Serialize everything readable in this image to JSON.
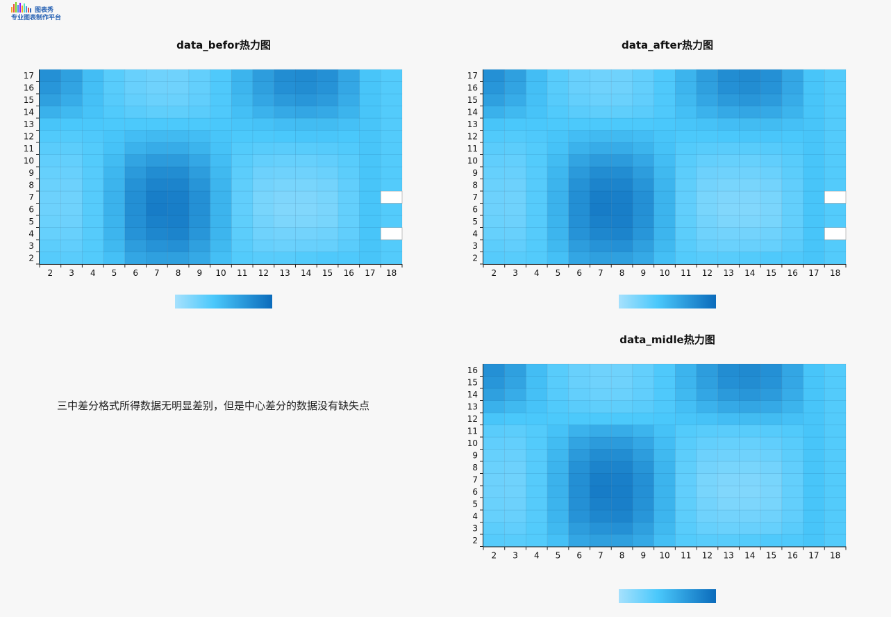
{
  "logo": {
    "line1": "图表秀",
    "line2": "专业图表制作平台"
  },
  "note": "三中差分格式所得数据无明显差别，但是中心差分的数据没有缺失点",
  "palette": [
    "#a6e1fd",
    "#4ac8fb",
    "#0b6bbb"
  ],
  "chart_data": [
    {
      "type": "heatmap",
      "title": "data_befor热力图",
      "x": [
        2,
        3,
        4,
        5,
        6,
        7,
        8,
        9,
        10,
        11,
        12,
        13,
        14,
        15,
        16,
        17,
        18
      ],
      "y": [
        2,
        3,
        4,
        5,
        6,
        7,
        8,
        9,
        10,
        11,
        12,
        13,
        14,
        15,
        16,
        17
      ],
      "vrange": [
        0,
        1
      ],
      "values": [
        [
          0.35,
          0.33,
          0.36,
          0.45,
          0.62,
          0.66,
          0.66,
          0.6,
          0.46,
          0.36,
          0.34,
          0.34,
          0.36,
          0.38,
          0.38,
          0.42,
          0.36
        ],
        [
          0.32,
          0.3,
          0.36,
          0.5,
          0.68,
          0.74,
          0.76,
          0.66,
          0.5,
          0.34,
          0.28,
          0.26,
          0.27,
          0.28,
          0.33,
          0.42,
          0.36
        ],
        [
          0.28,
          0.27,
          0.35,
          0.52,
          0.74,
          0.82,
          0.84,
          0.72,
          0.52,
          0.32,
          0.24,
          0.22,
          0.22,
          0.24,
          0.3,
          0.42,
          null
        ],
        [
          0.26,
          0.25,
          0.35,
          0.53,
          0.76,
          0.86,
          0.87,
          0.75,
          0.53,
          0.31,
          0.22,
          0.18,
          0.18,
          0.2,
          0.29,
          0.42,
          0.36
        ],
        [
          0.25,
          0.24,
          0.35,
          0.54,
          0.77,
          0.89,
          0.88,
          0.76,
          0.53,
          0.3,
          0.2,
          0.16,
          0.16,
          0.19,
          0.29,
          0.42,
          0.36
        ],
        [
          0.25,
          0.24,
          0.35,
          0.54,
          0.77,
          0.88,
          0.87,
          0.76,
          0.53,
          0.3,
          0.2,
          0.17,
          0.17,
          0.2,
          0.29,
          0.42,
          null
        ],
        [
          0.26,
          0.25,
          0.35,
          0.53,
          0.75,
          0.84,
          0.84,
          0.73,
          0.52,
          0.31,
          0.22,
          0.2,
          0.2,
          0.22,
          0.3,
          0.42,
          0.36
        ],
        [
          0.28,
          0.27,
          0.35,
          0.51,
          0.7,
          0.78,
          0.78,
          0.68,
          0.5,
          0.32,
          0.25,
          0.24,
          0.24,
          0.26,
          0.32,
          0.42,
          0.36
        ],
        [
          0.3,
          0.29,
          0.36,
          0.48,
          0.63,
          0.69,
          0.69,
          0.61,
          0.47,
          0.34,
          0.29,
          0.28,
          0.28,
          0.3,
          0.34,
          0.42,
          0.36
        ],
        [
          0.33,
          0.32,
          0.36,
          0.44,
          0.54,
          0.58,
          0.58,
          0.53,
          0.44,
          0.36,
          0.34,
          0.33,
          0.34,
          0.35,
          0.37,
          0.42,
          0.36
        ],
        [
          0.37,
          0.36,
          0.38,
          0.42,
          0.47,
          0.49,
          0.49,
          0.47,
          0.42,
          0.39,
          0.39,
          0.4,
          0.41,
          0.41,
          0.4,
          0.42,
          0.36
        ],
        [
          0.42,
          0.4,
          0.4,
          0.39,
          0.39,
          0.39,
          0.39,
          0.39,
          0.4,
          0.42,
          0.44,
          0.47,
          0.48,
          0.48,
          0.45,
          0.42,
          0.36
        ],
        [
          0.55,
          0.5,
          0.43,
          0.37,
          0.33,
          0.31,
          0.31,
          0.33,
          0.38,
          0.46,
          0.54,
          0.6,
          0.62,
          0.6,
          0.53,
          0.42,
          0.36
        ],
        [
          0.66,
          0.58,
          0.45,
          0.35,
          0.29,
          0.26,
          0.26,
          0.3,
          0.38,
          0.5,
          0.62,
          0.7,
          0.72,
          0.69,
          0.58,
          0.42,
          0.36
        ],
        [
          0.72,
          0.63,
          0.46,
          0.34,
          0.27,
          0.24,
          0.24,
          0.29,
          0.38,
          0.52,
          0.66,
          0.76,
          0.78,
          0.74,
          0.61,
          0.42,
          0.36
        ],
        [
          0.76,
          0.66,
          0.47,
          0.34,
          0.27,
          0.24,
          0.24,
          0.29,
          0.38,
          0.53,
          0.68,
          0.78,
          0.8,
          0.76,
          0.62,
          0.42,
          0.36
        ]
      ]
    },
    {
      "type": "heatmap",
      "title": "data_after热力图",
      "x": [
        2,
        3,
        4,
        5,
        6,
        7,
        8,
        9,
        10,
        11,
        12,
        13,
        14,
        15,
        16,
        17,
        18
      ],
      "y": [
        2,
        3,
        4,
        5,
        6,
        7,
        8,
        9,
        10,
        11,
        12,
        13,
        14,
        15,
        16,
        17
      ],
      "vrange": [
        0,
        1
      ],
      "values": [
        [
          0.35,
          0.34,
          0.36,
          0.45,
          0.62,
          0.66,
          0.66,
          0.6,
          0.46,
          0.36,
          0.34,
          0.34,
          0.36,
          0.38,
          0.38,
          0.42,
          0.36
        ],
        [
          0.32,
          0.3,
          0.36,
          0.5,
          0.68,
          0.74,
          0.76,
          0.66,
          0.5,
          0.34,
          0.28,
          0.26,
          0.27,
          0.28,
          0.33,
          0.42,
          0.36
        ],
        [
          0.28,
          0.27,
          0.35,
          0.52,
          0.74,
          0.82,
          0.84,
          0.72,
          0.52,
          0.32,
          0.24,
          0.22,
          0.22,
          0.24,
          0.3,
          0.42,
          null
        ],
        [
          0.26,
          0.25,
          0.35,
          0.53,
          0.76,
          0.86,
          0.87,
          0.75,
          0.53,
          0.31,
          0.22,
          0.18,
          0.18,
          0.2,
          0.29,
          0.42,
          0.36
        ],
        [
          0.25,
          0.24,
          0.35,
          0.54,
          0.77,
          0.89,
          0.88,
          0.76,
          0.53,
          0.3,
          0.2,
          0.16,
          0.16,
          0.19,
          0.29,
          0.42,
          0.36
        ],
        [
          0.25,
          0.24,
          0.35,
          0.54,
          0.77,
          0.88,
          0.87,
          0.76,
          0.53,
          0.3,
          0.2,
          0.17,
          0.17,
          0.2,
          0.29,
          0.42,
          null
        ],
        [
          0.26,
          0.25,
          0.35,
          0.53,
          0.75,
          0.84,
          0.84,
          0.73,
          0.52,
          0.31,
          0.22,
          0.2,
          0.2,
          0.22,
          0.3,
          0.42,
          0.36
        ],
        [
          0.28,
          0.27,
          0.35,
          0.51,
          0.7,
          0.78,
          0.78,
          0.68,
          0.5,
          0.32,
          0.25,
          0.24,
          0.24,
          0.26,
          0.32,
          0.42,
          0.36
        ],
        [
          0.3,
          0.29,
          0.36,
          0.48,
          0.63,
          0.69,
          0.69,
          0.61,
          0.47,
          0.34,
          0.29,
          0.28,
          0.28,
          0.3,
          0.34,
          0.42,
          0.36
        ],
        [
          0.33,
          0.32,
          0.36,
          0.44,
          0.54,
          0.58,
          0.58,
          0.53,
          0.44,
          0.36,
          0.34,
          0.33,
          0.34,
          0.35,
          0.37,
          0.42,
          0.36
        ],
        [
          0.37,
          0.36,
          0.38,
          0.42,
          0.47,
          0.49,
          0.49,
          0.47,
          0.42,
          0.39,
          0.39,
          0.4,
          0.41,
          0.41,
          0.4,
          0.42,
          0.36
        ],
        [
          0.42,
          0.4,
          0.4,
          0.39,
          0.39,
          0.39,
          0.39,
          0.39,
          0.4,
          0.42,
          0.44,
          0.47,
          0.48,
          0.48,
          0.45,
          0.42,
          0.36
        ],
        [
          0.55,
          0.5,
          0.43,
          0.37,
          0.33,
          0.31,
          0.31,
          0.33,
          0.38,
          0.46,
          0.54,
          0.6,
          0.62,
          0.6,
          0.53,
          0.42,
          0.36
        ],
        [
          0.66,
          0.58,
          0.45,
          0.35,
          0.29,
          0.26,
          0.26,
          0.3,
          0.38,
          0.5,
          0.62,
          0.7,
          0.72,
          0.69,
          0.58,
          0.42,
          0.36
        ],
        [
          0.72,
          0.63,
          0.46,
          0.34,
          0.27,
          0.24,
          0.24,
          0.29,
          0.38,
          0.52,
          0.66,
          0.76,
          0.78,
          0.74,
          0.61,
          0.42,
          0.36
        ],
        [
          0.76,
          0.66,
          0.47,
          0.34,
          0.27,
          0.24,
          0.24,
          0.29,
          0.38,
          0.53,
          0.68,
          0.78,
          0.8,
          0.76,
          0.62,
          0.42,
          0.36
        ]
      ]
    },
    {
      "type": "heatmap",
      "title": "data_midle热力图",
      "x": [
        2,
        3,
        4,
        5,
        6,
        7,
        8,
        9,
        10,
        11,
        12,
        13,
        14,
        15,
        16,
        17,
        18
      ],
      "y": [
        2,
        3,
        4,
        5,
        6,
        7,
        8,
        9,
        10,
        11,
        12,
        13,
        14,
        15,
        16
      ],
      "vrange": [
        0,
        1
      ],
      "values": [
        [
          0.35,
          0.34,
          0.36,
          0.45,
          0.62,
          0.66,
          0.66,
          0.6,
          0.46,
          0.36,
          0.34,
          0.34,
          0.36,
          0.38,
          0.38,
          0.42,
          0.36
        ],
        [
          0.32,
          0.3,
          0.36,
          0.5,
          0.68,
          0.74,
          0.76,
          0.66,
          0.5,
          0.34,
          0.28,
          0.26,
          0.27,
          0.28,
          0.33,
          0.42,
          0.36
        ],
        [
          0.28,
          0.27,
          0.35,
          0.52,
          0.74,
          0.82,
          0.84,
          0.72,
          0.52,
          0.32,
          0.24,
          0.22,
          0.22,
          0.24,
          0.3,
          0.42,
          0.36
        ],
        [
          0.26,
          0.25,
          0.35,
          0.53,
          0.76,
          0.86,
          0.87,
          0.75,
          0.53,
          0.31,
          0.22,
          0.18,
          0.18,
          0.2,
          0.29,
          0.42,
          0.36
        ],
        [
          0.25,
          0.24,
          0.35,
          0.54,
          0.77,
          0.89,
          0.88,
          0.76,
          0.53,
          0.3,
          0.2,
          0.16,
          0.16,
          0.19,
          0.29,
          0.42,
          0.36
        ],
        [
          0.25,
          0.24,
          0.35,
          0.54,
          0.77,
          0.88,
          0.87,
          0.76,
          0.53,
          0.3,
          0.2,
          0.17,
          0.17,
          0.2,
          0.29,
          0.42,
          0.36
        ],
        [
          0.26,
          0.25,
          0.35,
          0.53,
          0.75,
          0.84,
          0.84,
          0.73,
          0.52,
          0.31,
          0.22,
          0.2,
          0.2,
          0.22,
          0.3,
          0.42,
          0.36
        ],
        [
          0.28,
          0.27,
          0.35,
          0.51,
          0.7,
          0.78,
          0.78,
          0.68,
          0.5,
          0.32,
          0.25,
          0.24,
          0.24,
          0.26,
          0.32,
          0.42,
          0.36
        ],
        [
          0.3,
          0.29,
          0.36,
          0.48,
          0.63,
          0.69,
          0.69,
          0.61,
          0.47,
          0.34,
          0.29,
          0.28,
          0.28,
          0.3,
          0.34,
          0.42,
          0.36
        ],
        [
          0.33,
          0.32,
          0.36,
          0.44,
          0.54,
          0.58,
          0.58,
          0.53,
          0.44,
          0.36,
          0.34,
          0.33,
          0.34,
          0.35,
          0.37,
          0.42,
          0.36
        ],
        [
          0.42,
          0.4,
          0.4,
          0.39,
          0.39,
          0.39,
          0.39,
          0.39,
          0.4,
          0.42,
          0.44,
          0.47,
          0.48,
          0.48,
          0.45,
          0.42,
          0.36
        ],
        [
          0.55,
          0.5,
          0.43,
          0.37,
          0.33,
          0.31,
          0.31,
          0.33,
          0.38,
          0.46,
          0.54,
          0.6,
          0.62,
          0.6,
          0.53,
          0.42,
          0.36
        ],
        [
          0.66,
          0.58,
          0.45,
          0.35,
          0.29,
          0.26,
          0.26,
          0.3,
          0.38,
          0.5,
          0.62,
          0.7,
          0.72,
          0.69,
          0.58,
          0.42,
          0.36
        ],
        [
          0.72,
          0.63,
          0.46,
          0.34,
          0.27,
          0.24,
          0.24,
          0.29,
          0.38,
          0.52,
          0.66,
          0.76,
          0.78,
          0.74,
          0.61,
          0.42,
          0.36
        ],
        [
          0.76,
          0.66,
          0.47,
          0.34,
          0.27,
          0.24,
          0.24,
          0.29,
          0.38,
          0.53,
          0.68,
          0.78,
          0.8,
          0.76,
          0.62,
          0.42,
          0.36
        ]
      ]
    }
  ]
}
